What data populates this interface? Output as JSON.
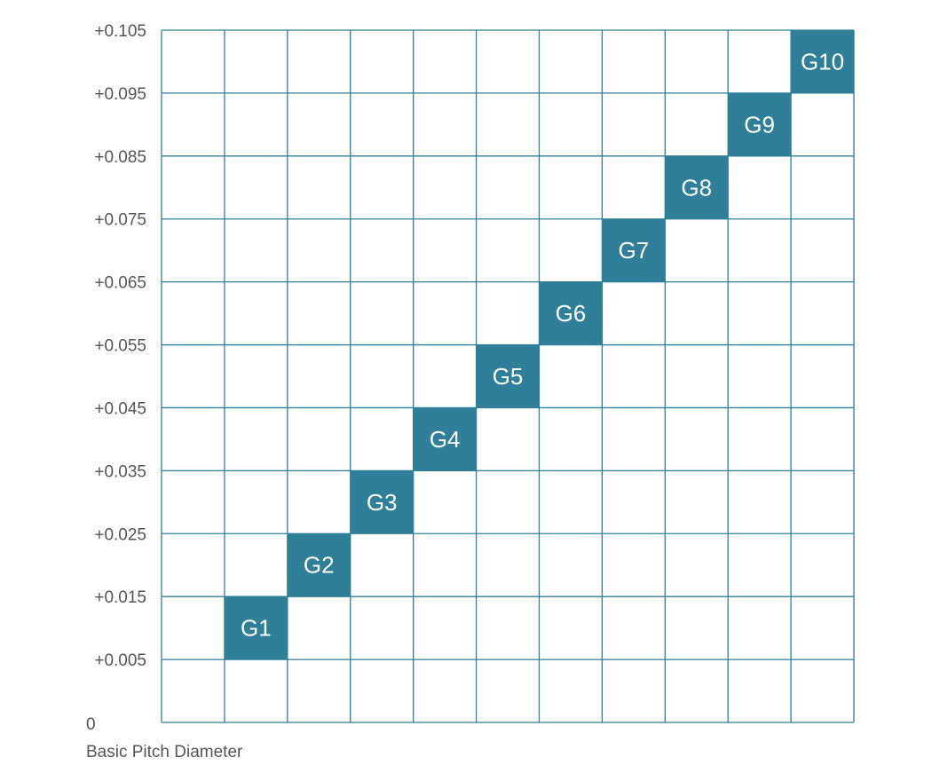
{
  "chart_data": {
    "type": "heatmap",
    "title": "",
    "xlabel": "Basic Pitch Diameter",
    "ylabel": "",
    "y_tick_labels": [
      "0",
      "+0.005",
      "+0.015",
      "+0.025",
      "+0.035",
      "+0.045",
      "+0.055",
      "+0.065",
      "+0.075",
      "+0.085",
      "+0.095",
      "+0.105"
    ],
    "columns": 11,
    "rows": 11,
    "grid": true,
    "cells": [
      {
        "label": "G1",
        "column": 2,
        "y_range": [
          "+0.005",
          "+0.015"
        ]
      },
      {
        "label": "G2",
        "column": 3,
        "y_range": [
          "+0.015",
          "+0.025"
        ]
      },
      {
        "label": "G3",
        "column": 4,
        "y_range": [
          "+0.025",
          "+0.035"
        ]
      },
      {
        "label": "G4",
        "column": 5,
        "y_range": [
          "+0.035",
          "+0.045"
        ]
      },
      {
        "label": "G5",
        "column": 6,
        "y_range": [
          "+0.045",
          "+0.055"
        ]
      },
      {
        "label": "G6",
        "column": 7,
        "y_range": [
          "+0.055",
          "+0.065"
        ]
      },
      {
        "label": "G7",
        "column": 8,
        "y_range": [
          "+0.065",
          "+0.075"
        ]
      },
      {
        "label": "G8",
        "column": 9,
        "y_range": [
          "+0.075",
          "+0.085"
        ]
      },
      {
        "label": "G9",
        "column": 10,
        "y_range": [
          "+0.085",
          "+0.095"
        ]
      },
      {
        "label": "G10",
        "column": 11,
        "y_range": [
          "+0.095",
          "+0.105"
        ]
      }
    ],
    "colors": {
      "grid": "#2f7f98",
      "cell_fill": "#2e7f97",
      "cell_text": "#ffffff",
      "tick_text": "#555555"
    }
  }
}
